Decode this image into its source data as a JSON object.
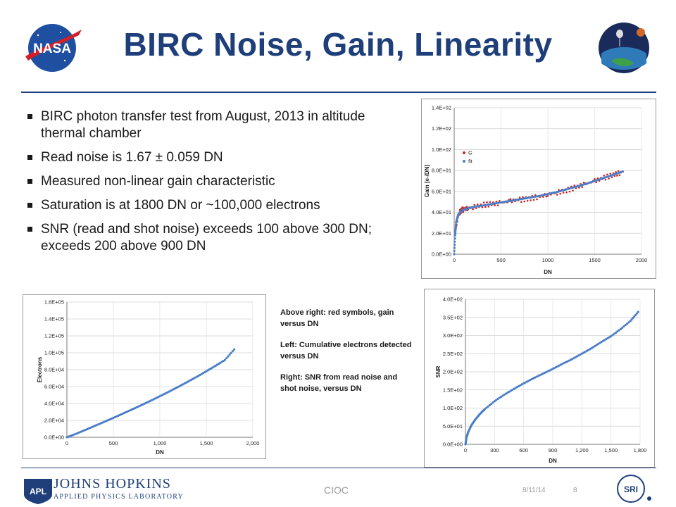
{
  "slide": {
    "title": "BIRC Noise, Gain, Linearity",
    "bullets": [
      "BIRC photon transfer test from August, 2013 in altitude thermal chamber",
      "Read noise is 1.67 ± 0.059 DN",
      "Measured non-linear gain characteristic",
      "Saturation is at 1800 DN or ~100,000 electrons",
      "SNR (read and shot noise) exceeds 100 above 300 DN; exceeds 200 above 900 DN"
    ],
    "notes": [
      "Above right: red symbols, gain versus DN",
      "Left: Cumulative electrons detected versus DN",
      "Right: SNR from read noise and shot noise, versus DN"
    ]
  },
  "footer": {
    "center": "CIOC",
    "date": "8/11/14",
    "page": "8",
    "apl_name": "JOHNS HOPKINS",
    "apl_sub": "APPLIED PHYSICS LABORATORY",
    "apl_mark": "APL",
    "nasa_mark": "NASA",
    "sri_mark": "SRI"
  },
  "colors": {
    "title": "#1f3f7a",
    "blue_series": "#4a7ec8",
    "red_series": "#cc2222"
  },
  "chart_data": [
    {
      "type": "scatter",
      "xlabel": "DN",
      "ylabel": "Gain [e-/DN]",
      "xlim": [
        0,
        2000
      ],
      "ylim": [
        0,
        140
      ],
      "xticks": [
        "0",
        "500",
        "1000",
        "1500",
        "2000"
      ],
      "yticks": [
        "0.0E+00",
        "2.0E+01",
        "4.0E+01",
        "6.0E+01",
        "8.0E+01",
        "1.0E+02",
        "1.2E+02",
        "1.4E+02"
      ],
      "legend": [
        "G",
        "fit"
      ],
      "legend_position": "top-left",
      "series": [
        {
          "name": "G",
          "x": [
            20,
            40,
            60,
            80,
            100,
            150,
            200,
            300,
            400,
            500,
            600,
            700,
            800,
            900,
            1000,
            1100,
            1200,
            1300,
            1400,
            1500,
            1600,
            1700,
            1780
          ],
          "y": [
            25,
            36,
            40,
            42,
            43,
            44,
            45,
            47,
            48,
            49,
            51,
            52,
            53,
            55,
            57,
            59,
            61,
            64,
            67,
            70,
            73,
            76,
            78
          ]
        },
        {
          "name": "fit",
          "x": [
            0,
            10,
            20,
            40,
            60,
            80,
            100,
            150,
            200,
            300,
            400,
            500,
            600,
            700,
            800,
            900,
            1000,
            1100,
            1200,
            1300,
            1400,
            1500,
            1600,
            1700,
            1800
          ],
          "y": [
            0,
            18,
            30,
            37,
            40,
            41.5,
            42.5,
            44,
            45,
            46.5,
            48,
            49.5,
            51,
            52.5,
            54,
            55.5,
            57.5,
            59.5,
            62,
            64.5,
            67,
            70,
            73,
            76,
            79
          ]
        }
      ]
    },
    {
      "type": "scatter",
      "xlabel": "DN",
      "ylabel": "Electrons",
      "xlim": [
        0,
        2000
      ],
      "ylim": [
        0,
        160000
      ],
      "xticks": [
        "0",
        "500",
        "1,000",
        "1,500",
        "2,000"
      ],
      "yticks": [
        "0.0E+00",
        "2.0E+04",
        "4.0E+04",
        "6.0E+04",
        "8.0E+04",
        "1.0E+05",
        "1.2E+05",
        "1.4E+05",
        "1.6E+05"
      ],
      "series": [
        {
          "name": "",
          "x": [
            0,
            100,
            200,
            300,
            400,
            500,
            600,
            700,
            800,
            900,
            1000,
            1100,
            1200,
            1300,
            1400,
            1500,
            1600,
            1700,
            1800
          ],
          "y": [
            0,
            4200,
            8800,
            13500,
            18200,
            23000,
            27900,
            32900,
            38000,
            43200,
            48600,
            54100,
            59800,
            65700,
            71800,
            78100,
            84700,
            91500,
            104000
          ]
        }
      ]
    },
    {
      "type": "scatter",
      "xlabel": "DN",
      "ylabel": "SNR",
      "xlim": [
        0,
        1800
      ],
      "ylim": [
        0,
        400
      ],
      "xticks": [
        "0",
        "300",
        "600",
        "900",
        "1,200",
        "1,500",
        "1,800"
      ],
      "yticks": [
        "0.0E+00",
        "5.0E+01",
        "1.0E+02",
        "1.5E+02",
        "2.0E+02",
        "2.5E+02",
        "3.0E+02",
        "3.5E+02",
        "4.0E+02"
      ],
      "series": [
        {
          "name": "",
          "x": [
            0,
            10,
            30,
            60,
            100,
            150,
            200,
            300,
            400,
            500,
            600,
            700,
            800,
            900,
            1000,
            1100,
            1200,
            1300,
            1400,
            1500,
            1600,
            1700,
            1780
          ],
          "y": [
            0,
            18,
            35,
            52,
            68,
            84,
            97,
            119,
            137,
            153,
            168,
            182,
            195,
            208,
            222,
            235,
            250,
            265,
            282,
            298,
            318,
            340,
            365
          ]
        }
      ]
    }
  ]
}
